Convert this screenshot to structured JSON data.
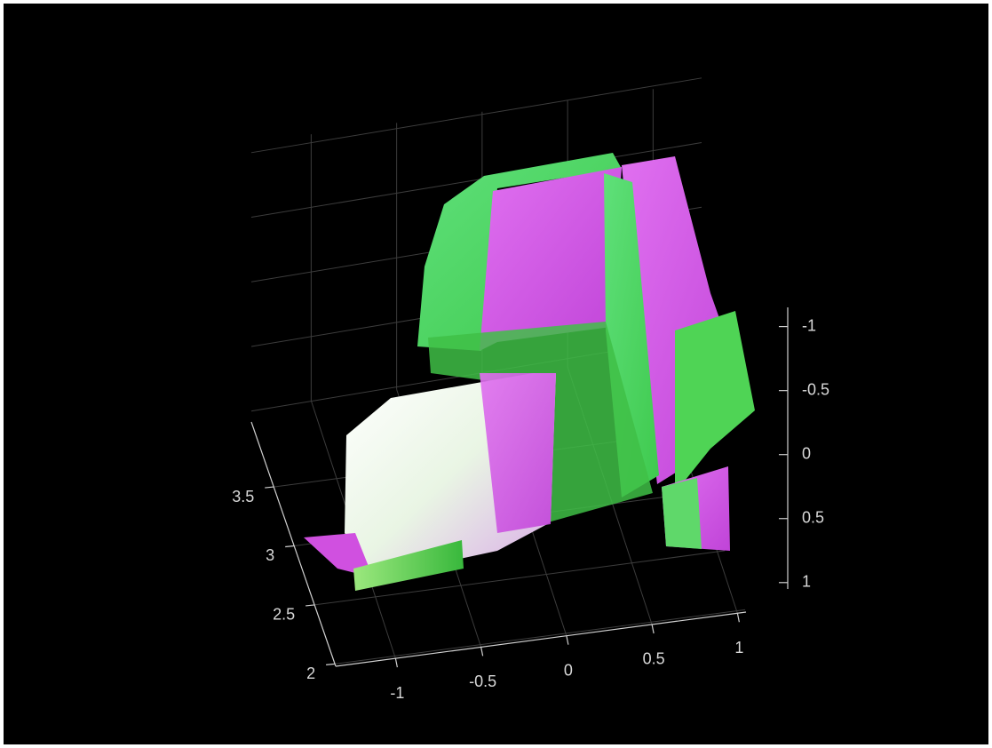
{
  "chart_data": {
    "type": "pointcloud",
    "xlim": [
      -1.35,
      1.05
    ],
    "xticks": [
      -1,
      -0.5,
      0,
      0.5,
      1
    ],
    "ylim": [
      1.98,
      4.05
    ],
    "yticks": [
      2,
      2.5,
      3,
      3.5
    ],
    "zlim": [
      -1.15,
      1.05
    ],
    "zticks": [
      -1,
      -0.5,
      0,
      0.5,
      1
    ],
    "grid": true
  }
}
